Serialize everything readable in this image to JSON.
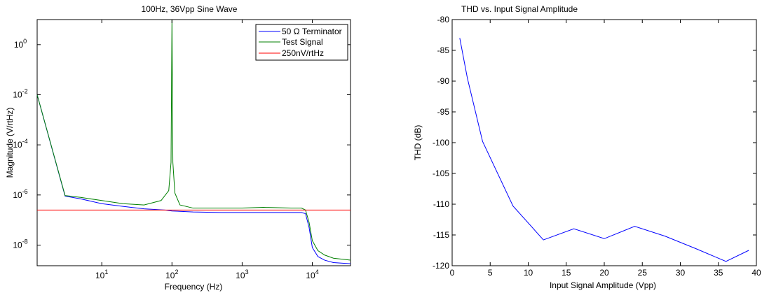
{
  "chart_data": [
    {
      "type": "line",
      "title": "100Hz, 36Vpp Sine Wave",
      "xlabel": "Frequency (Hz)",
      "ylabel": "Magnitude (V/rtHz)",
      "xscale": "log",
      "yscale": "log",
      "xlim": [
        1.2,
        35000
      ],
      "ylim": [
        1.5e-09,
        10
      ],
      "xticks": [
        {
          "value": 10,
          "base": "10",
          "exp": "1"
        },
        {
          "value": 100,
          "base": "10",
          "exp": "2"
        },
        {
          "value": 1000,
          "base": "10",
          "exp": "3"
        },
        {
          "value": 10000,
          "base": "10",
          "exp": "4"
        }
      ],
      "yticks": [
        {
          "value": 1e-08,
          "base": "10",
          "exp": "-8"
        },
        {
          "value": 1e-06,
          "base": "10",
          "exp": "-6"
        },
        {
          "value": 0.0001,
          "base": "10",
          "exp": "-4"
        },
        {
          "value": 0.01,
          "base": "10",
          "exp": "-2"
        },
        {
          "value": 1,
          "base": "10",
          "exp": "0"
        }
      ],
      "legend_position": "top-right",
      "series": [
        {
          "name": "50 Ω Terminator",
          "color": "#0000ff",
          "x": [
            1.2,
            3,
            5,
            10,
            20,
            40,
            80,
            100,
            200,
            500,
            1000,
            2000,
            5000,
            7000,
            8000,
            9000,
            10000,
            12000,
            15000,
            20000,
            35000
          ],
          "y": [
            0.01,
            9e-07,
            7e-07,
            4.5e-07,
            3.5e-07,
            2.8e-07,
            2.5e-07,
            2.3e-07,
            2.1e-07,
            2e-07,
            2e-07,
            2e-07,
            2e-07,
            2e-07,
            1.8e-07,
            5e-08,
            8e-09,
            3.5e-09,
            2.5e-09,
            2e-09,
            1.8e-09
          ]
        },
        {
          "name": "Test Signal",
          "color": "#007f00",
          "x": [
            1.2,
            3,
            5,
            10,
            20,
            40,
            70,
            90,
            97,
            100,
            103,
            110,
            130,
            200,
            500,
            1000,
            2000,
            5000,
            7000,
            8000,
            9000,
            10000,
            12000,
            15000,
            20000,
            35000
          ],
          "y": [
            0.01,
            9.5e-07,
            8e-07,
            6e-07,
            4.5e-07,
            4e-07,
            6e-07,
            1.5e-06,
            2e-05,
            10,
            2e-05,
            1.2e-06,
            4e-07,
            3e-07,
            3e-07,
            3e-07,
            3.2e-07,
            3e-07,
            3e-07,
            2.5e-07,
            8e-08,
            1.5e-08,
            6e-09,
            4e-09,
            3e-09,
            2.5e-09
          ]
        },
        {
          "name": "250nV/rtHz",
          "color": "#ff0000",
          "x": [
            1.2,
            35000
          ],
          "y": [
            2.5e-07,
            2.5e-07
          ]
        }
      ]
    },
    {
      "type": "line",
      "title": "THD vs. Input Signal Amplitude",
      "xlabel": "Input Signal Amplitude (Vpp)",
      "ylabel": "THD (dB)",
      "xlim": [
        0,
        40
      ],
      "ylim": [
        -120,
        -80
      ],
      "xticks": [
        0,
        5,
        10,
        15,
        20,
        25,
        30,
        35,
        40
      ],
      "yticks": [
        -80,
        -85,
        -90,
        -95,
        -100,
        -105,
        -110,
        -115,
        -120
      ],
      "series": [
        {
          "color": "#0000ff",
          "x": [
            1,
            2,
            4,
            8,
            12,
            16,
            20,
            24,
            28,
            32,
            36,
            39
          ],
          "y": [
            -83,
            -89.5,
            -99.8,
            -110.3,
            -115.8,
            -114,
            -115.6,
            -113.6,
            -115.2,
            -117.2,
            -119.3,
            -117.5
          ]
        }
      ]
    }
  ]
}
